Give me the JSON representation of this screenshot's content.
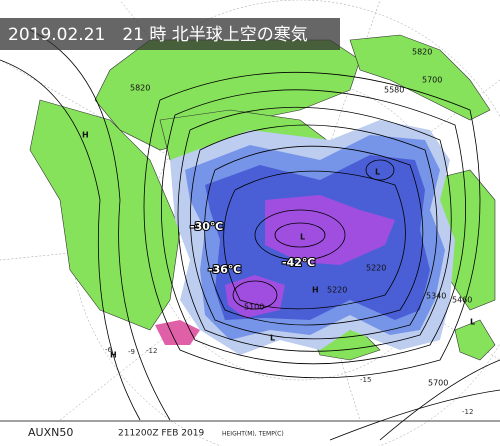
{
  "header": {
    "title": "2019.02.21　21 時 北半球上空の寒気"
  },
  "annotations": [
    "-30℃",
    "-36℃",
    "-42℃"
  ],
  "contour_labels": [
    "5820",
    "5820",
    "5700",
    "5580",
    "5220",
    "5220",
    "5340",
    "5460",
    "5100",
    "5700"
  ],
  "centers": [
    "H",
    "L",
    "L",
    "H",
    "L",
    "H",
    "L"
  ],
  "isotherm_labels": [
    "-6",
    "-9",
    "-12",
    "-15",
    "-12"
  ],
  "footer": {
    "code": "AUXN50",
    "time": "211200Z FEB 2019",
    "elements": "HEIGHT(M), TEMP(C)"
  }
}
